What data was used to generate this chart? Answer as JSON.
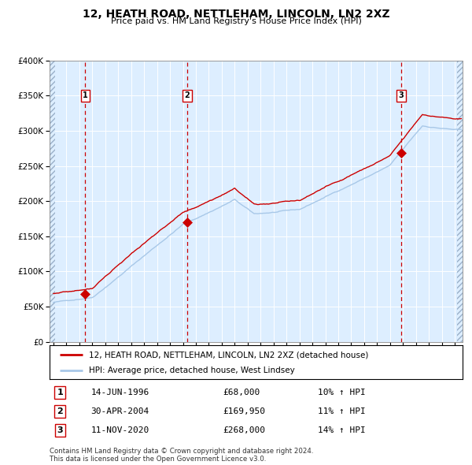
{
  "title": "12, HEATH ROAD, NETTLEHAM, LINCOLN, LN2 2XZ",
  "subtitle": "Price paid vs. HM Land Registry's House Price Index (HPI)",
  "property_label": "12, HEATH ROAD, NETTLEHAM, LINCOLN, LN2 2XZ (detached house)",
  "hpi_label": "HPI: Average price, detached house, West Lindsey",
  "sale1_date": "14-JUN-1996",
  "sale1_price": 68000,
  "sale1_pct": "10%",
  "sale2_date": "30-APR-2004",
  "sale2_price": 169950,
  "sale2_pct": "11%",
  "sale3_date": "11-NOV-2020",
  "sale3_price": 268000,
  "sale3_pct": "14%",
  "property_color": "#cc0000",
  "hpi_color": "#a8c8e8",
  "sale_dot_color": "#cc0000",
  "vline_color": "#cc0000",
  "plot_bg_color": "#ddeeff",
  "footer": "Contains HM Land Registry data © Crown copyright and database right 2024.\nThis data is licensed under the Open Government Licence v3.0.",
  "ylim": [
    0,
    400000
  ],
  "yticks": [
    0,
    50000,
    100000,
    150000,
    200000,
    250000,
    300000,
    350000,
    400000
  ],
  "xstart_year": 1994,
  "xend_year": 2025
}
